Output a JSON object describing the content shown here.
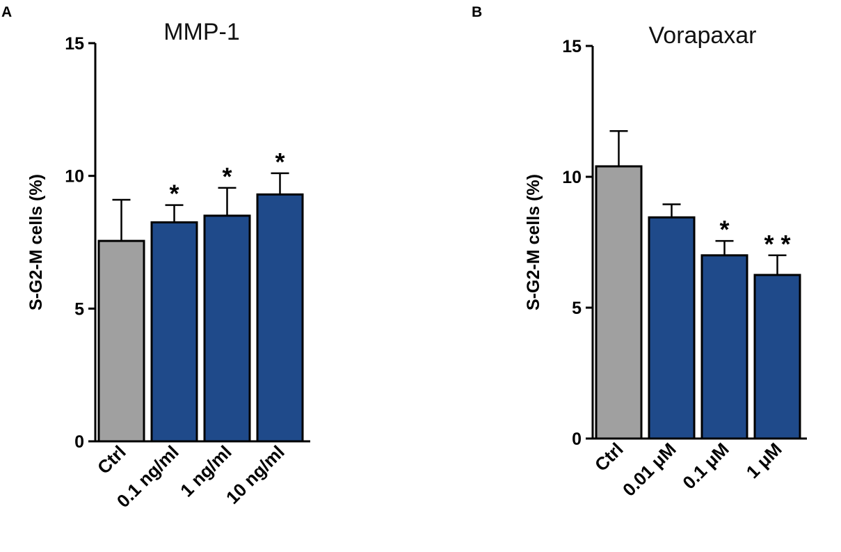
{
  "chart_data": [
    {
      "panel": "A",
      "type": "bar",
      "title": "MMP-1",
      "ylabel": "S-G2-M cells (%)",
      "xlabel": "",
      "ylim": [
        0,
        15
      ],
      "yticks": [
        0,
        5,
        10,
        15
      ],
      "categories": [
        "Ctrl",
        "0.1 ng/ml",
        "1 ng/ml",
        "10 ng/ml"
      ],
      "values": [
        7.55,
        8.25,
        8.5,
        9.3
      ],
      "errors": [
        1.55,
        0.65,
        1.05,
        0.8
      ],
      "colors": [
        "#a0a0a0",
        "#1f4a8a",
        "#1f4a8a",
        "#1f4a8a"
      ],
      "significance": [
        "",
        "*",
        "*",
        "*"
      ]
    },
    {
      "panel": "B",
      "type": "bar",
      "title": "Vorapaxar",
      "ylabel": "S-G2-M cells (%)",
      "xlabel": "",
      "ylim": [
        0,
        15
      ],
      "yticks": [
        0,
        5,
        10,
        15
      ],
      "categories": [
        "Ctrl",
        "0.01 μM",
        "0.1 μM",
        "1 μM"
      ],
      "values": [
        10.4,
        8.45,
        7.0,
        6.25
      ],
      "errors": [
        1.35,
        0.5,
        0.55,
        0.75
      ],
      "colors": [
        "#a0a0a0",
        "#1f4a8a",
        "#1f4a8a",
        "#1f4a8a"
      ],
      "significance": [
        "",
        "",
        "*",
        "* *"
      ]
    }
  ]
}
